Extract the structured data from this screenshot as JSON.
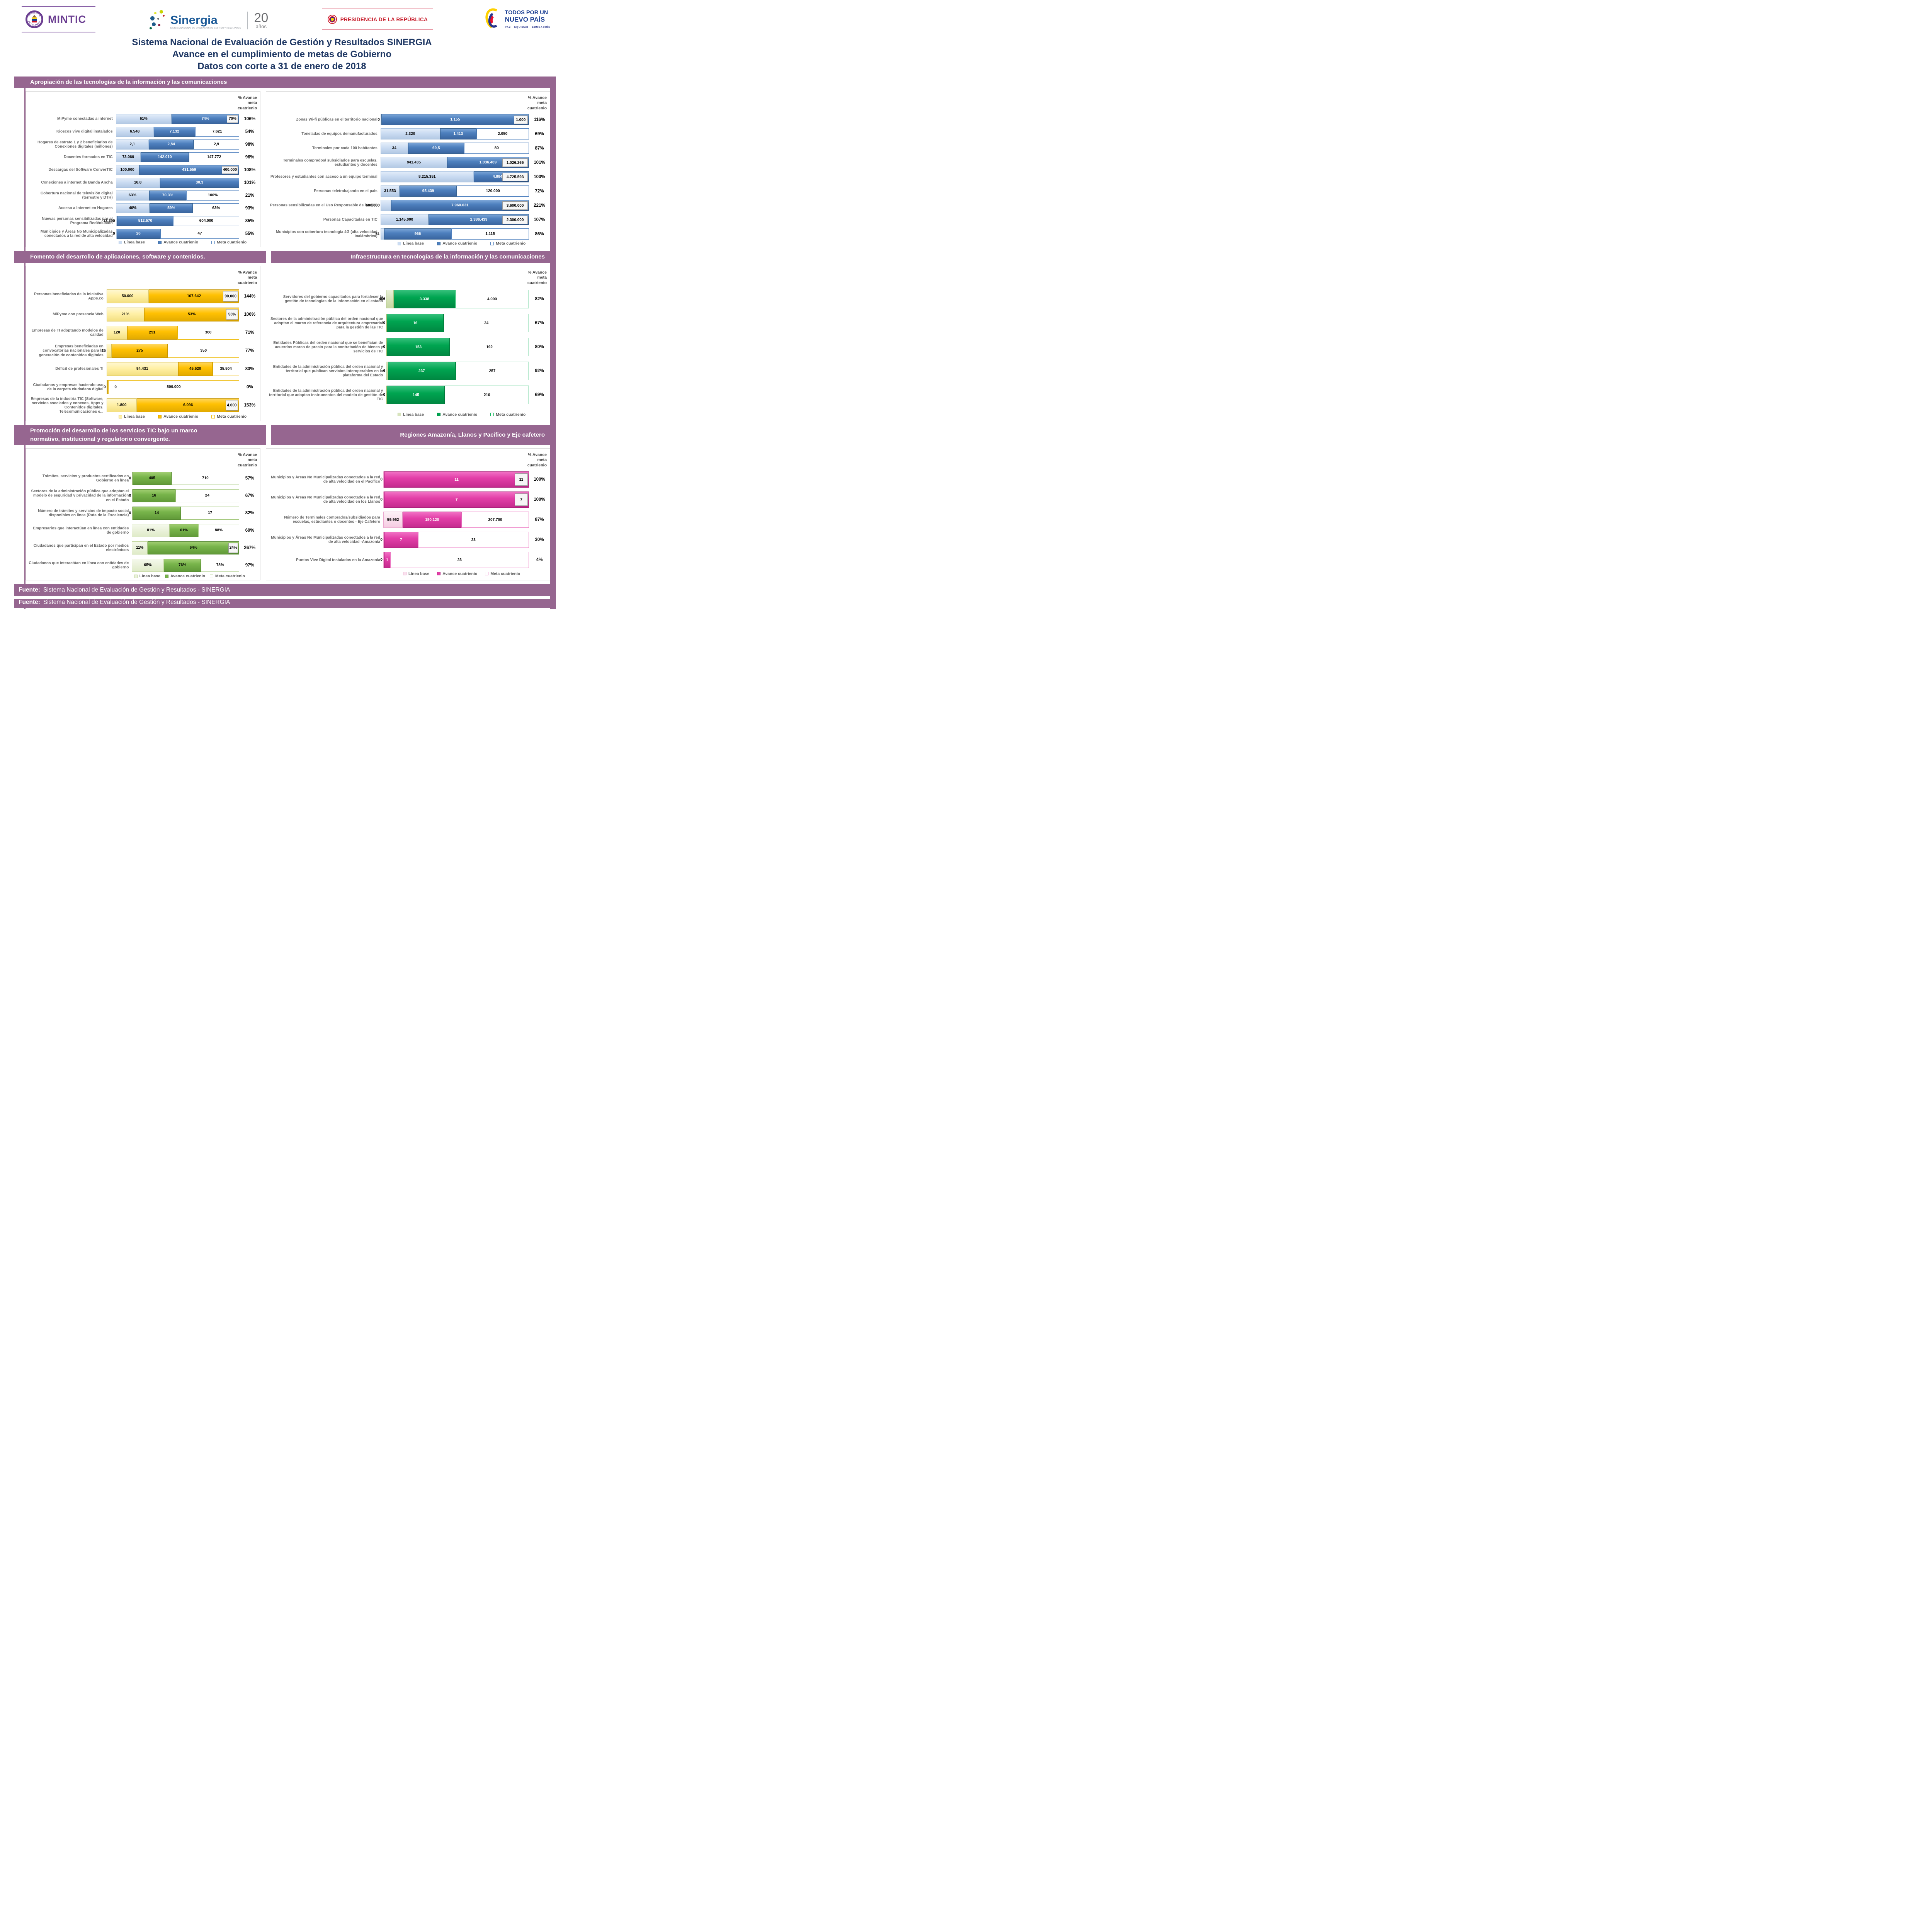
{
  "banner": {
    "mintic": {
      "seal_top": "REPÚBLICA",
      "seal_bottom": "DE COLOMBIA",
      "name": "MINTIC"
    },
    "sinergia": {
      "name": "Sinergia",
      "caption": "SISTEMA NACIONAL DE EVALUACIÓN DE GESTIÓN Y RESULTADOS",
      "years_number": "20",
      "years_word": "años"
    },
    "presidencia": {
      "name": "PRESIDENCIA DE LA REPÚBLICA"
    },
    "nuevo_pais": {
      "line1": "TODOS POR UN",
      "line2": "NUEVO PAÍS",
      "tagline": "PAZ EQUIDAD EDUCACIÓN"
    }
  },
  "title": [
    "Sistema Nacional de Evaluación de Gestión y Resultados SINERGIA",
    "Avance en el cumplimiento de metas de Gobierno",
    "Datos con corte a 31 de enero de 2018"
  ],
  "footer": {
    "label": "Fuente:",
    "text": "Sistema Nacional de Evaluación de Gestión y Resultados - SINERGIA"
  },
  "chart_data": [
    {
      "id": "apropiacion-izquierda",
      "type": "bar",
      "orientation": "horizontal-stacked",
      "header": "Apropiación de las tecnologías de la información y las comunicaciones",
      "value_col_header": "% Avance meta cuatrienio",
      "legend": [
        "Línea base",
        "Avance cuatrienio",
        "Meta cuatrienio"
      ],
      "theme": "blue",
      "categories": [
        "MiPyme conectadas a internet",
        "Kioscos vive digital instalados",
        "Hogares de estrato 1 y 2 beneficiarios de Conexiones digitales (millones)",
        "Docentes formados en TIC",
        "Descargas del Software ConverTIC",
        "Conexiones a internet de Banda Ancha",
        "Cobertura nacional de televisión digital (terrestre y DTH)",
        "Acceso a Internet en Hogares",
        "Nuevas personas sensibilizadas por el Programa RedVolución",
        "Municipios y Áreas No Municipalizadas conectados a la red de alta velocidad"
      ],
      "series": [
        {
          "name": "Línea base",
          "values": [
            61,
            6548,
            2.1,
            73060,
            100000,
            16.8,
            63,
            46,
            13390,
            0
          ],
          "labels": [
            "61%",
            "6.548",
            "2,1",
            "73.060",
            "100.000",
            "16,8",
            "63%",
            "46%",
            "13.390",
            "0"
          ]
        },
        {
          "name": "Avance cuatrienio",
          "values": [
            74,
            7132,
            2.84,
            142010,
            431559,
            30.3,
            70.3,
            59,
            512570,
            26
          ],
          "labels": [
            "74%",
            "7.132",
            "2,84",
            "142.010",
            "431.559",
            "30,3",
            "70,3%",
            "59%",
            "512.570",
            "26"
          ]
        },
        {
          "name": "Meta cuatrienio",
          "values": [
            70,
            7621,
            2.9,
            147772,
            400000,
            null,
            100,
            63,
            604000,
            47
          ],
          "labels": [
            "70%",
            "7.621",
            "2,9",
            "147.772",
            "400.000",
            null,
            "100%",
            "63%",
            "604.000",
            "47"
          ]
        }
      ],
      "meta_display": [
        "overlay",
        "segment",
        "segment",
        "segment",
        "overlay",
        "none",
        "segment",
        "segment",
        "segment",
        "segment"
      ],
      "pct_avance": [
        "106%",
        "54%",
        "98%",
        "96%",
        "108%",
        "101%",
        "21%",
        "93%",
        "85%",
        "55%"
      ]
    },
    {
      "id": "apropiacion-derecha",
      "type": "bar",
      "orientation": "horizontal-stacked",
      "header": "",
      "value_col_header": "% Avance meta cuatrienio",
      "legend": [
        "Línea base",
        "Avance cuatrienio",
        "Meta cuatrienio"
      ],
      "theme": "blue",
      "categories": [
        "Zonas Wi-fi públicas en el territorio nacional",
        "Toneladas de equipos demanufacturados",
        "Terminales por cada 100 habitantes",
        "Terminales comprados/ subsidiados para escuelas, estudiantes y docentes",
        "Profesores y estudiantes con acceso a un equipo terminal",
        "Personas teletrabajando en el país",
        "Personas sensibilizadas en el Uso Responsable de las TIC",
        "Personas Capacitadas en TIC",
        "Municipios con cobertura tecnología 4G (alta velocidad inalámbrica)"
      ],
      "series": [
        {
          "name": "Línea base",
          "values": [
            0,
            2320,
            34,
            841435,
            8215351,
            31553,
            600000,
            1145000,
            51
          ],
          "labels": [
            "0",
            "2.320",
            "34",
            "841.435",
            "8.215.351",
            "31.553",
            "600.000",
            "1.145.000",
            "51"
          ]
        },
        {
          "name": "Avance cuatrienio",
          "values": [
            1155,
            1413,
            69.5,
            1036469,
            4884258,
            95439,
            7960631,
            2386439,
            966
          ],
          "labels": [
            "1.155",
            "1.413",
            "69,5",
            "1.036.469",
            "4.884.258",
            "95.439",
            "7.960.631",
            "2.386.439",
            "966"
          ]
        },
        {
          "name": "Meta cuatrienio",
          "values": [
            1000,
            2050,
            80,
            1026265,
            4725593,
            120000,
            3600000,
            2300000,
            1115
          ],
          "labels": [
            "1.000",
            "2.050",
            "80",
            "1.026.265",
            "4.725.593",
            "120.000",
            "3.600.000",
            "2.300.000",
            "1.115"
          ]
        }
      ],
      "meta_display": [
        "overlay",
        "segment",
        "segment",
        "overlay",
        "overlay",
        "segment",
        "overlay",
        "overlay",
        "segment"
      ],
      "pct_avance": [
        "116%",
        "69%",
        "87%",
        "101%",
        "103%",
        "72%",
        "221%",
        "107%",
        "86%"
      ]
    },
    {
      "id": "fomento",
      "type": "bar",
      "orientation": "horizontal-stacked",
      "header": "Fomento del desarrollo de aplicaciones, software y contenidos.",
      "value_col_header": "% Avance meta cuatrienio",
      "legend": [
        "Línea base",
        "Avance cuatrienio",
        "Meta cuatrienio"
      ],
      "theme": "yellow",
      "categories": [
        "Personas beneficiadas de la Iniciativa Apps.co",
        "MiPyme con presencia Web",
        "Empresas de TI adoptando modelos de calidad",
        "Empresas beneficiadas en convocatorias nacionales para la generación de contenidos digitales",
        "Déficit de profesionales TI",
        "Ciudadanos y empresas haciendo uso de la carpeta ciudadana digital",
        "Empresas de la industria TIC (Software, servicios asociados y conexos, Apps y Contenidos digitales, Telecomunicaciones e..."
      ],
      "series": [
        {
          "name": "Línea base",
          "values": [
            50000,
            21,
            120,
            25,
            94431,
            0,
            1800
          ],
          "labels": [
            "50.000",
            "21%",
            "120",
            "25",
            "94.431",
            "0",
            "1.800"
          ]
        },
        {
          "name": "Avance cuatrienio",
          "values": [
            107642,
            53,
            291,
            275,
            45520,
            0,
            6096
          ],
          "labels": [
            "107.642",
            "53%",
            "291",
            "275",
            "45.520",
            "0",
            "6.096"
          ]
        },
        {
          "name": "Meta cuatrienio",
          "values": [
            90000,
            50,
            360,
            350,
            35504,
            800000,
            4600
          ],
          "labels": [
            "90.000",
            "50%",
            "360",
            "350",
            "35.504",
            "800.000",
            "4.600"
          ]
        }
      ],
      "meta_display": [
        "overlay",
        "overlay",
        "segment",
        "segment",
        "segment",
        "segment",
        "overlay"
      ],
      "pct_avance": [
        "144%",
        "106%",
        "71%",
        "77%",
        "83%",
        "0%",
        "153%"
      ]
    },
    {
      "id": "infraestructura",
      "type": "bar",
      "orientation": "horizontal-stacked",
      "header": "Infraestructura en tecnologías de la información y las comunicaciones",
      "value_col_header": "% Avance meta cuatrienio",
      "legend": [
        "Línea base",
        "Avance cuatrienio",
        "Meta cuatrienio"
      ],
      "theme": "greend",
      "categories": [
        "Servidores del gobierno capacitados para fortalecer la gestión de tecnologías de la información en el estado",
        "Sectores de la administración pública del orden nacional que adoptan el marco de referencia de arquitectura empresarial para la gestión de las TIC",
        "Entidades Públicas del orden nacional que se benefician de acuerdos marco de precio para la contratación de bienes y servicios de TIC",
        "Entidades de la administración pública del orden nacional y territorial que publican servicios interoperables en la plataforma del Estado",
        "Entidades de la administración pública del orden nacional y territorial que adoptan instrumentos del modelo de gestión de TIC"
      ],
      "series": [
        {
          "name": "Línea base",
          "values": [
            406,
            0,
            0,
            6,
            0
          ],
          "labels": [
            "406",
            "0",
            "0",
            "6",
            "0"
          ]
        },
        {
          "name": "Avance cuatrienio",
          "values": [
            3338,
            16,
            153,
            237,
            145
          ],
          "labels": [
            "3.338",
            "16",
            "153",
            "237",
            "145"
          ]
        },
        {
          "name": "Meta cuatrienio",
          "values": [
            4000,
            24,
            192,
            257,
            210
          ],
          "labels": [
            "4.000",
            "24",
            "192",
            "257",
            "210"
          ]
        }
      ],
      "meta_display": [
        "segment",
        "segment",
        "segment",
        "segment",
        "segment"
      ],
      "pct_avance": [
        "82%",
        "67%",
        "80%",
        "92%",
        "69%"
      ]
    },
    {
      "id": "promocion",
      "type": "bar",
      "orientation": "horizontal-stacked",
      "header": "Promoción del desarrollo de los servicios TIC bajo un marco normativo, institucional y regulatorio convergente.",
      "value_col_header": "% Avance meta cuatrienio",
      "legend": [
        "Línea base",
        "Avance cuatrienio",
        "Meta cuatrienio"
      ],
      "theme": "greene",
      "categories": [
        "Trámites, servicios y productos certificados en Gobierno en línea",
        "Sectores de la administración pública que adoptan el modelo de seguridad y privacidad de la información en el Estado",
        "Número de trámites y servicios de impacto social disponibles en línea (Ruta de la Excelencia)",
        "Empresarios que interactúan en línea con entidades de gobierno",
        "Ciudadanos que participan en el Estado por medios electrónicos",
        "Ciudadanos que interactúan en línea con entidades de gobierno"
      ],
      "series": [
        {
          "name": "Línea base",
          "values": [
            0,
            0,
            0,
            81,
            11,
            65
          ],
          "labels": [
            "0",
            "0",
            "0",
            "81%",
            "11%",
            "65%"
          ]
        },
        {
          "name": "Avance cuatrienio",
          "values": [
            405,
            16,
            14,
            61,
            64,
            76
          ],
          "labels": [
            "405",
            "16",
            "14",
            "61%",
            "64%",
            "76%"
          ]
        },
        {
          "name": "Meta cuatrienio",
          "values": [
            710,
            24,
            17,
            88,
            24,
            78
          ],
          "labels": [
            "710",
            "24",
            "17",
            "88%",
            "24%",
            "78%"
          ]
        }
      ],
      "meta_display": [
        "segment",
        "segment",
        "segment",
        "segment",
        "overlay",
        "segment"
      ],
      "pct_avance": [
        "57%",
        "67%",
        "82%",
        "69%",
        "267%",
        "97%"
      ]
    },
    {
      "id": "regiones",
      "type": "bar",
      "orientation": "horizontal-stacked",
      "header": "Regiones Amazonía, Llanos y Pacífico y Eje cafetero",
      "value_col_header": "% Avance meta cuatrienio",
      "legend": [
        "Línea base",
        "Avance cuatrienio",
        "Meta cuatrienio"
      ],
      "theme": "pink",
      "categories": [
        "Municipios y Áreas No Municipalizadas conectados a la red de alta velocidad en el Pacífico",
        "Municipios y Áreas No Municipalizadas conectados a la red de alta velocidad en los Llanos",
        "Número de Terminales comprados/subsidiados para escuelas, estudiantes o docentes - Eje Cafetero",
        "Municipios y Áreas No Municipalizadas conectados a la red de alta velocidad -Amazonía",
        "Puntos Vive Digital instalados en la Amazonía"
      ],
      "series": [
        {
          "name": "Línea base",
          "values": [
            0,
            0,
            59952,
            0,
            0
          ],
          "labels": [
            "0",
            "0",
            "59.952",
            "0",
            "0"
          ]
        },
        {
          "name": "Avance cuatrienio",
          "values": [
            11,
            7,
            180120,
            7,
            1
          ],
          "labels": [
            "11",
            "7",
            "180.120",
            "7",
            "1"
          ]
        },
        {
          "name": "Meta cuatrienio",
          "values": [
            11,
            7,
            207700,
            23,
            23
          ],
          "labels": [
            "11",
            "7",
            "207.700",
            "23",
            "23"
          ]
        }
      ],
      "meta_display": [
        "overlay",
        "overlay",
        "segment",
        "segment",
        "segment"
      ],
      "pct_avance": [
        "100%",
        "100%",
        "87%",
        "30%",
        "4%"
      ]
    }
  ]
}
